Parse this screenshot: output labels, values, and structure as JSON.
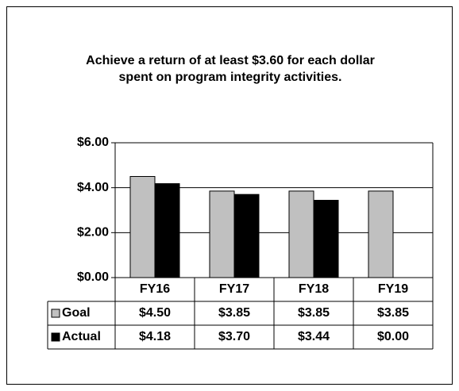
{
  "chart_data": {
    "type": "bar",
    "title": "Achieve a return of at least $3.60 for each dollar spent on program integrity activities.",
    "categories": [
      "FY16",
      "FY17",
      "FY18",
      "FY19"
    ],
    "series": [
      {
        "name": "Goal",
        "color": "#c0c0c0",
        "values": [
          4.5,
          3.85,
          3.85,
          3.85
        ],
        "value_labels": [
          "$4.50",
          "$3.85",
          "$3.85",
          "$3.85"
        ]
      },
      {
        "name": "Actual",
        "color": "#000000",
        "values": [
          4.18,
          3.7,
          3.44,
          0
        ],
        "value_labels": [
          "$4.18",
          "$3.70",
          "$3.44",
          "$0.00"
        ]
      }
    ],
    "ylim": [
      0,
      6
    ],
    "yticks": [
      {
        "value": 0,
        "label": "$0.00"
      },
      {
        "value": 2,
        "label": "$2.00"
      },
      {
        "value": 4,
        "label": "$4.00"
      },
      {
        "value": 6,
        "label": "$6.00"
      }
    ],
    "grid": true
  }
}
